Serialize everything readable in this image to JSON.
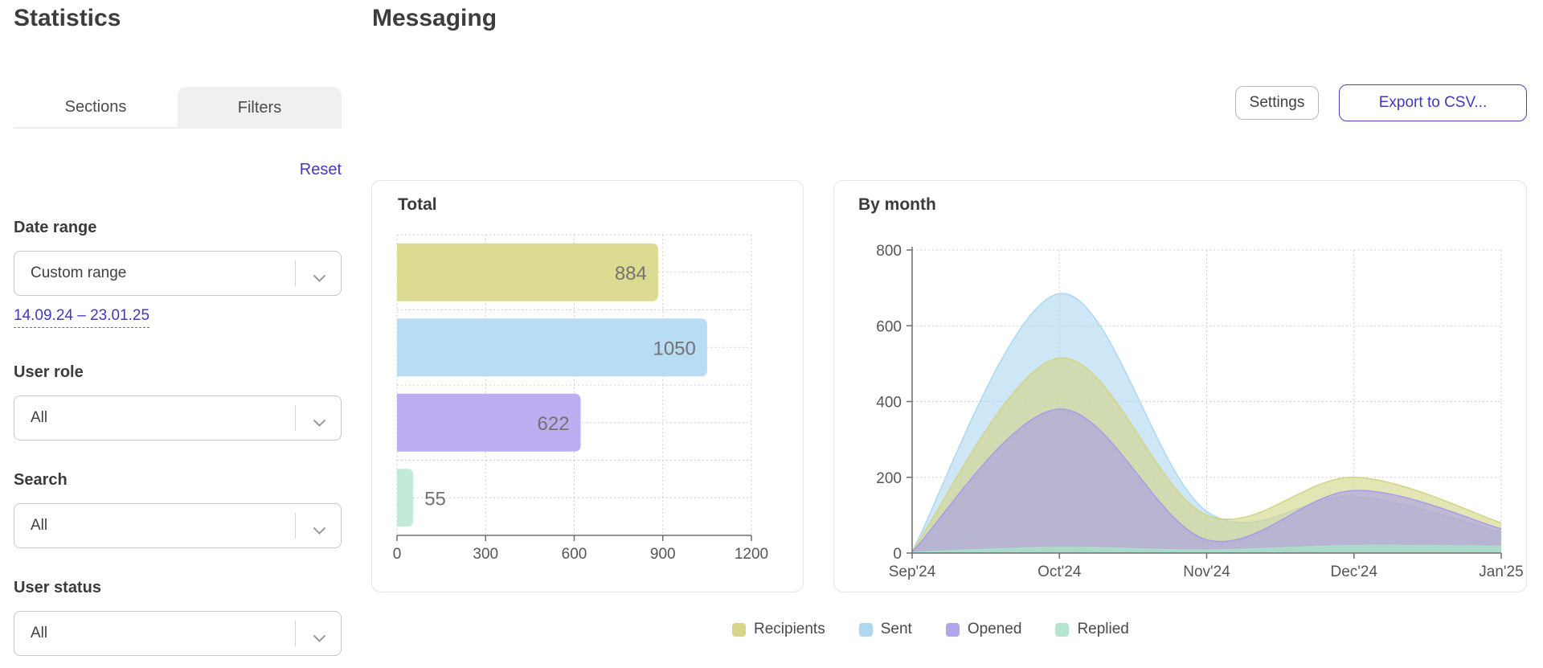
{
  "page": {
    "section_title": "Statistics",
    "report_title": "Messaging"
  },
  "tabs": [
    {
      "label": "Sections",
      "active": false
    },
    {
      "label": "Filters",
      "active": true
    }
  ],
  "reset_label": "Reset",
  "filters": {
    "date_range": {
      "label": "Date range",
      "value": "Custom range",
      "range_link": "14.09.24 – 23.01.25"
    },
    "user_role": {
      "label": "User role",
      "value": "All"
    },
    "search": {
      "label": "Search",
      "value": "All"
    },
    "user_status": {
      "label": "User status",
      "value": "All"
    }
  },
  "actions": {
    "settings_label": "Settings",
    "export_label": "Export to CSV..."
  },
  "colors": {
    "accent": "#4238bf",
    "recipients": "#d5d687",
    "sent": "#aed7f0",
    "opened": "#b2a5ec",
    "replied": "#b3e5cf",
    "grid": "#cfcfcf",
    "axis": "#6e6e6e",
    "tick_text": "#555555",
    "bar_label": "#737373"
  },
  "chart_data": [
    {
      "type": "bar",
      "title": "Total",
      "orientation": "horizontal",
      "categories": [
        "Recipients",
        "Sent",
        "Opened",
        "Replied"
      ],
      "values": [
        884,
        1050,
        622,
        55
      ],
      "bar_colors": [
        "#dbdb92",
        "#b8dcf4",
        "#bcaef0",
        "#c2ead8"
      ],
      "xlim": [
        0,
        1200
      ],
      "xticks": [
        0,
        300,
        600,
        900,
        1200
      ],
      "grid": "dashed"
    },
    {
      "type": "area",
      "title": "By month",
      "x": [
        "Sep'24",
        "Oct'24",
        "Nov'24",
        "Dec'24",
        "Jan'25"
      ],
      "series": [
        {
          "name": "Sent",
          "values": [
            5,
            685,
            110,
            150,
            55
          ],
          "color": "#aed7f0"
        },
        {
          "name": "Recipients",
          "values": [
            5,
            515,
            100,
            200,
            80
          ],
          "color": "#d2d383"
        },
        {
          "name": "Opened",
          "values": [
            3,
            380,
            35,
            165,
            64
          ],
          "color": "#a99bea"
        },
        {
          "name": "Replied",
          "values": [
            2,
            15,
            8,
            20,
            18
          ],
          "color": "#a8e0c8"
        }
      ],
      "ylim": [
        0,
        800
      ],
      "yticks": [
        0,
        200,
        400,
        600,
        800
      ],
      "grid": "dashed",
      "legend_position": "bottom"
    }
  ],
  "legend": [
    {
      "label": "Recipients",
      "color": "#d5d687"
    },
    {
      "label": "Sent",
      "color": "#aed7f0"
    },
    {
      "label": "Opened",
      "color": "#b2a5ec"
    },
    {
      "label": "Replied",
      "color": "#b3e5cf"
    }
  ]
}
